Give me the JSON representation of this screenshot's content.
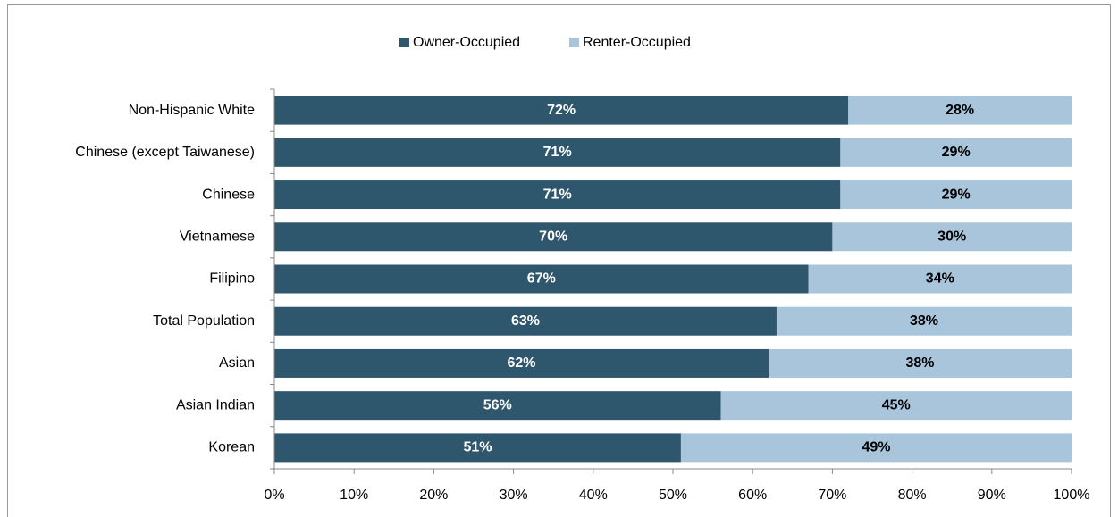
{
  "chart_data": {
    "type": "bar",
    "orientation": "horizontal",
    "stacked": true,
    "categories": [
      "Non-Hispanic White",
      "Chinese (except Taiwanese)",
      "Chinese",
      "Vietnamese",
      "Filipino",
      "Total Population",
      "Asian",
      "Asian Indian",
      "Korean"
    ],
    "series": [
      {
        "name": "Owner-Occupied",
        "color": "#2e566d",
        "label_color": "#ffffff",
        "values": [
          72,
          71,
          71,
          70,
          67,
          63,
          62,
          56,
          51
        ],
        "value_labels": [
          "72%",
          "71%",
          "71%",
          "70%",
          "67%",
          "63%",
          "62%",
          "56%",
          "51%"
        ]
      },
      {
        "name": "Renter-Occupied",
        "color": "#a8c5dc",
        "label_color": "#000000",
        "values": [
          28,
          29,
          29,
          30,
          34,
          38,
          38,
          45,
          49
        ],
        "value_labels": [
          "28%",
          "29%",
          "29%",
          "30%",
          "34%",
          "38%",
          "38%",
          "45%",
          "49%"
        ]
      }
    ],
    "xlim": [
      0,
      100
    ],
    "xticks": [
      {
        "value": 0,
        "label": "0%"
      },
      {
        "value": 10,
        "label": "10%"
      },
      {
        "value": 20,
        "label": "20%"
      },
      {
        "value": 30,
        "label": "30%"
      },
      {
        "value": 40,
        "label": "40%"
      },
      {
        "value": 50,
        "label": "50%"
      },
      {
        "value": 60,
        "label": "60%"
      },
      {
        "value": 70,
        "label": "70%"
      },
      {
        "value": 80,
        "label": "80%"
      },
      {
        "value": 90,
        "label": "90%"
      },
      {
        "value": 100,
        "label": "100%"
      }
    ],
    "legend": "top"
  }
}
